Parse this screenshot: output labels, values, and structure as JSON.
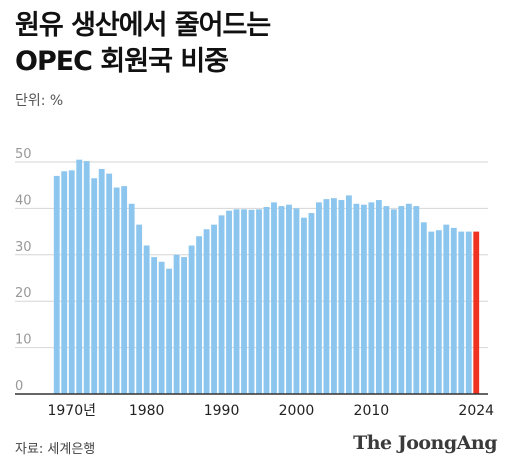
{
  "title": "원유 생산에서 줄어드는\nOPEC 회원국 비중",
  "unit_label": "단위: %",
  "source": "자료: 세계은행",
  "brand": "The JoongAng",
  "colors": {
    "bar": "#8cc6ee",
    "highlight": "#ee3322",
    "grid": "#d6d6d6",
    "axis": "#333333",
    "tick": "#999999"
  },
  "chart_data": {
    "type": "bar",
    "title": "원유 생산에서 줄어드는 OPEC 회원국 비중",
    "ylabel": "단위: %",
    "ylim": [
      0,
      50
    ],
    "yticks": [
      0,
      10,
      20,
      30,
      40,
      50
    ],
    "grid": true,
    "x_tick_labels": [
      {
        "year": 1970,
        "label": "1970년"
      },
      {
        "year": 1980,
        "label": "1980"
      },
      {
        "year": 1990,
        "label": "1990"
      },
      {
        "year": 2000,
        "label": "2000"
      },
      {
        "year": 2010,
        "label": "2010"
      },
      {
        "year": 2024,
        "label": "2024"
      }
    ],
    "highlight_year": 2024,
    "x": [
      1968,
      1969,
      1970,
      1971,
      1972,
      1973,
      1974,
      1975,
      1976,
      1977,
      1978,
      1979,
      1980,
      1981,
      1982,
      1983,
      1984,
      1985,
      1986,
      1987,
      1988,
      1989,
      1990,
      1991,
      1992,
      1993,
      1994,
      1995,
      1996,
      1997,
      1998,
      1999,
      2000,
      2001,
      2002,
      2003,
      2004,
      2005,
      2006,
      2007,
      2008,
      2009,
      2010,
      2011,
      2012,
      2013,
      2014,
      2015,
      2016,
      2017,
      2018,
      2019,
      2020,
      2021,
      2022,
      2023,
      2024
    ],
    "values": [
      47,
      48,
      48.2,
      50.5,
      50.2,
      46.5,
      48.5,
      47.5,
      44.5,
      44.8,
      41,
      36.5,
      32,
      29.5,
      28.5,
      27,
      30,
      29.5,
      32,
      34,
      35.5,
      36.5,
      38.5,
      39.5,
      39.8,
      39.8,
      39.7,
      39.8,
      40.3,
      41.3,
      40.5,
      40.8,
      40,
      38,
      39,
      41.3,
      42,
      42.2,
      41.8,
      42.8,
      41,
      40.8,
      41.3,
      41.8,
      40.5,
      39.8,
      40.5,
      41,
      40.5,
      37,
      35,
      35.3,
      36.5,
      35.8,
      35,
      35,
      35
    ]
  }
}
